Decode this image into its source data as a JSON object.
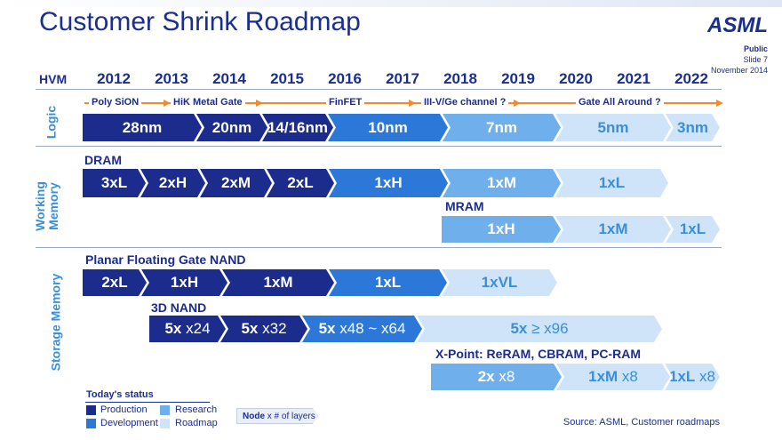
{
  "header": {
    "title": "Customer Shrink Roadmap",
    "logo": "ASML",
    "classification": "Public",
    "slide": "Slide 7",
    "date": "November 2014"
  },
  "timeline": {
    "label": "HVM",
    "years": [
      "2012",
      "2013",
      "2014",
      "2015",
      "2016",
      "2017",
      "2018",
      "2019",
      "2020",
      "2021",
      "2022"
    ]
  },
  "logic": {
    "section_label": "Logic",
    "techs": [
      "Poly SiON",
      "HiK Metal Gate",
      "FinFET",
      "III-V/Ge channel ?",
      "Gate All Around ?"
    ],
    "nodes": [
      "28nm",
      "20nm",
      "14/16nm",
      "10nm",
      "7nm",
      "5nm",
      "3nm"
    ]
  },
  "memory": {
    "section_label": "Working Memory",
    "dram_label": "DRAM",
    "dram_nodes": [
      "3xL",
      "2xH",
      "2xM",
      "2xL",
      "1xH",
      "1xM",
      "1xL"
    ],
    "mram_label": "MRAM",
    "mram_nodes": [
      "1xH",
      "1xM",
      "1xL"
    ]
  },
  "storage": {
    "section_label": "Storage Memory",
    "nand_label": "Planar Floating Gate NAND",
    "nand_nodes": [
      "2xL",
      "1xH",
      "1xM",
      "1xL",
      "1xVL"
    ],
    "nand3d_label": "3D NAND",
    "nand3d_nodes": [
      {
        "node": "5x",
        "layers": "x24"
      },
      {
        "node": "5x",
        "layers": "x32"
      },
      {
        "node": "5x",
        "layers": "x48 ~ x64"
      },
      {
        "node": "5x",
        "layers": "≥ x96"
      }
    ],
    "xpoint_label": "X-Point: ReRAM, CBRAM, PC-RAM",
    "xpoint_nodes": [
      {
        "node": "2x",
        "layers": "x8"
      },
      {
        "node": "1xM",
        "layers": "x8"
      },
      {
        "node": "1xL",
        "layers": "x8"
      }
    ]
  },
  "legend": {
    "title": "Today's status",
    "items": [
      "Production",
      "Research",
      "Development",
      "Roadmap"
    ],
    "node_key": "Node",
    "layers_key": "x # of layers"
  },
  "source": "Source: ASML, Customer roadmaps",
  "colors": {
    "production": "#1b2c8c",
    "development": "#2c78d8",
    "research": "#6fb0ec",
    "roadmap": "#cfe4f8",
    "arrow": "#f08a2c",
    "title": "#1a2f8f"
  }
}
